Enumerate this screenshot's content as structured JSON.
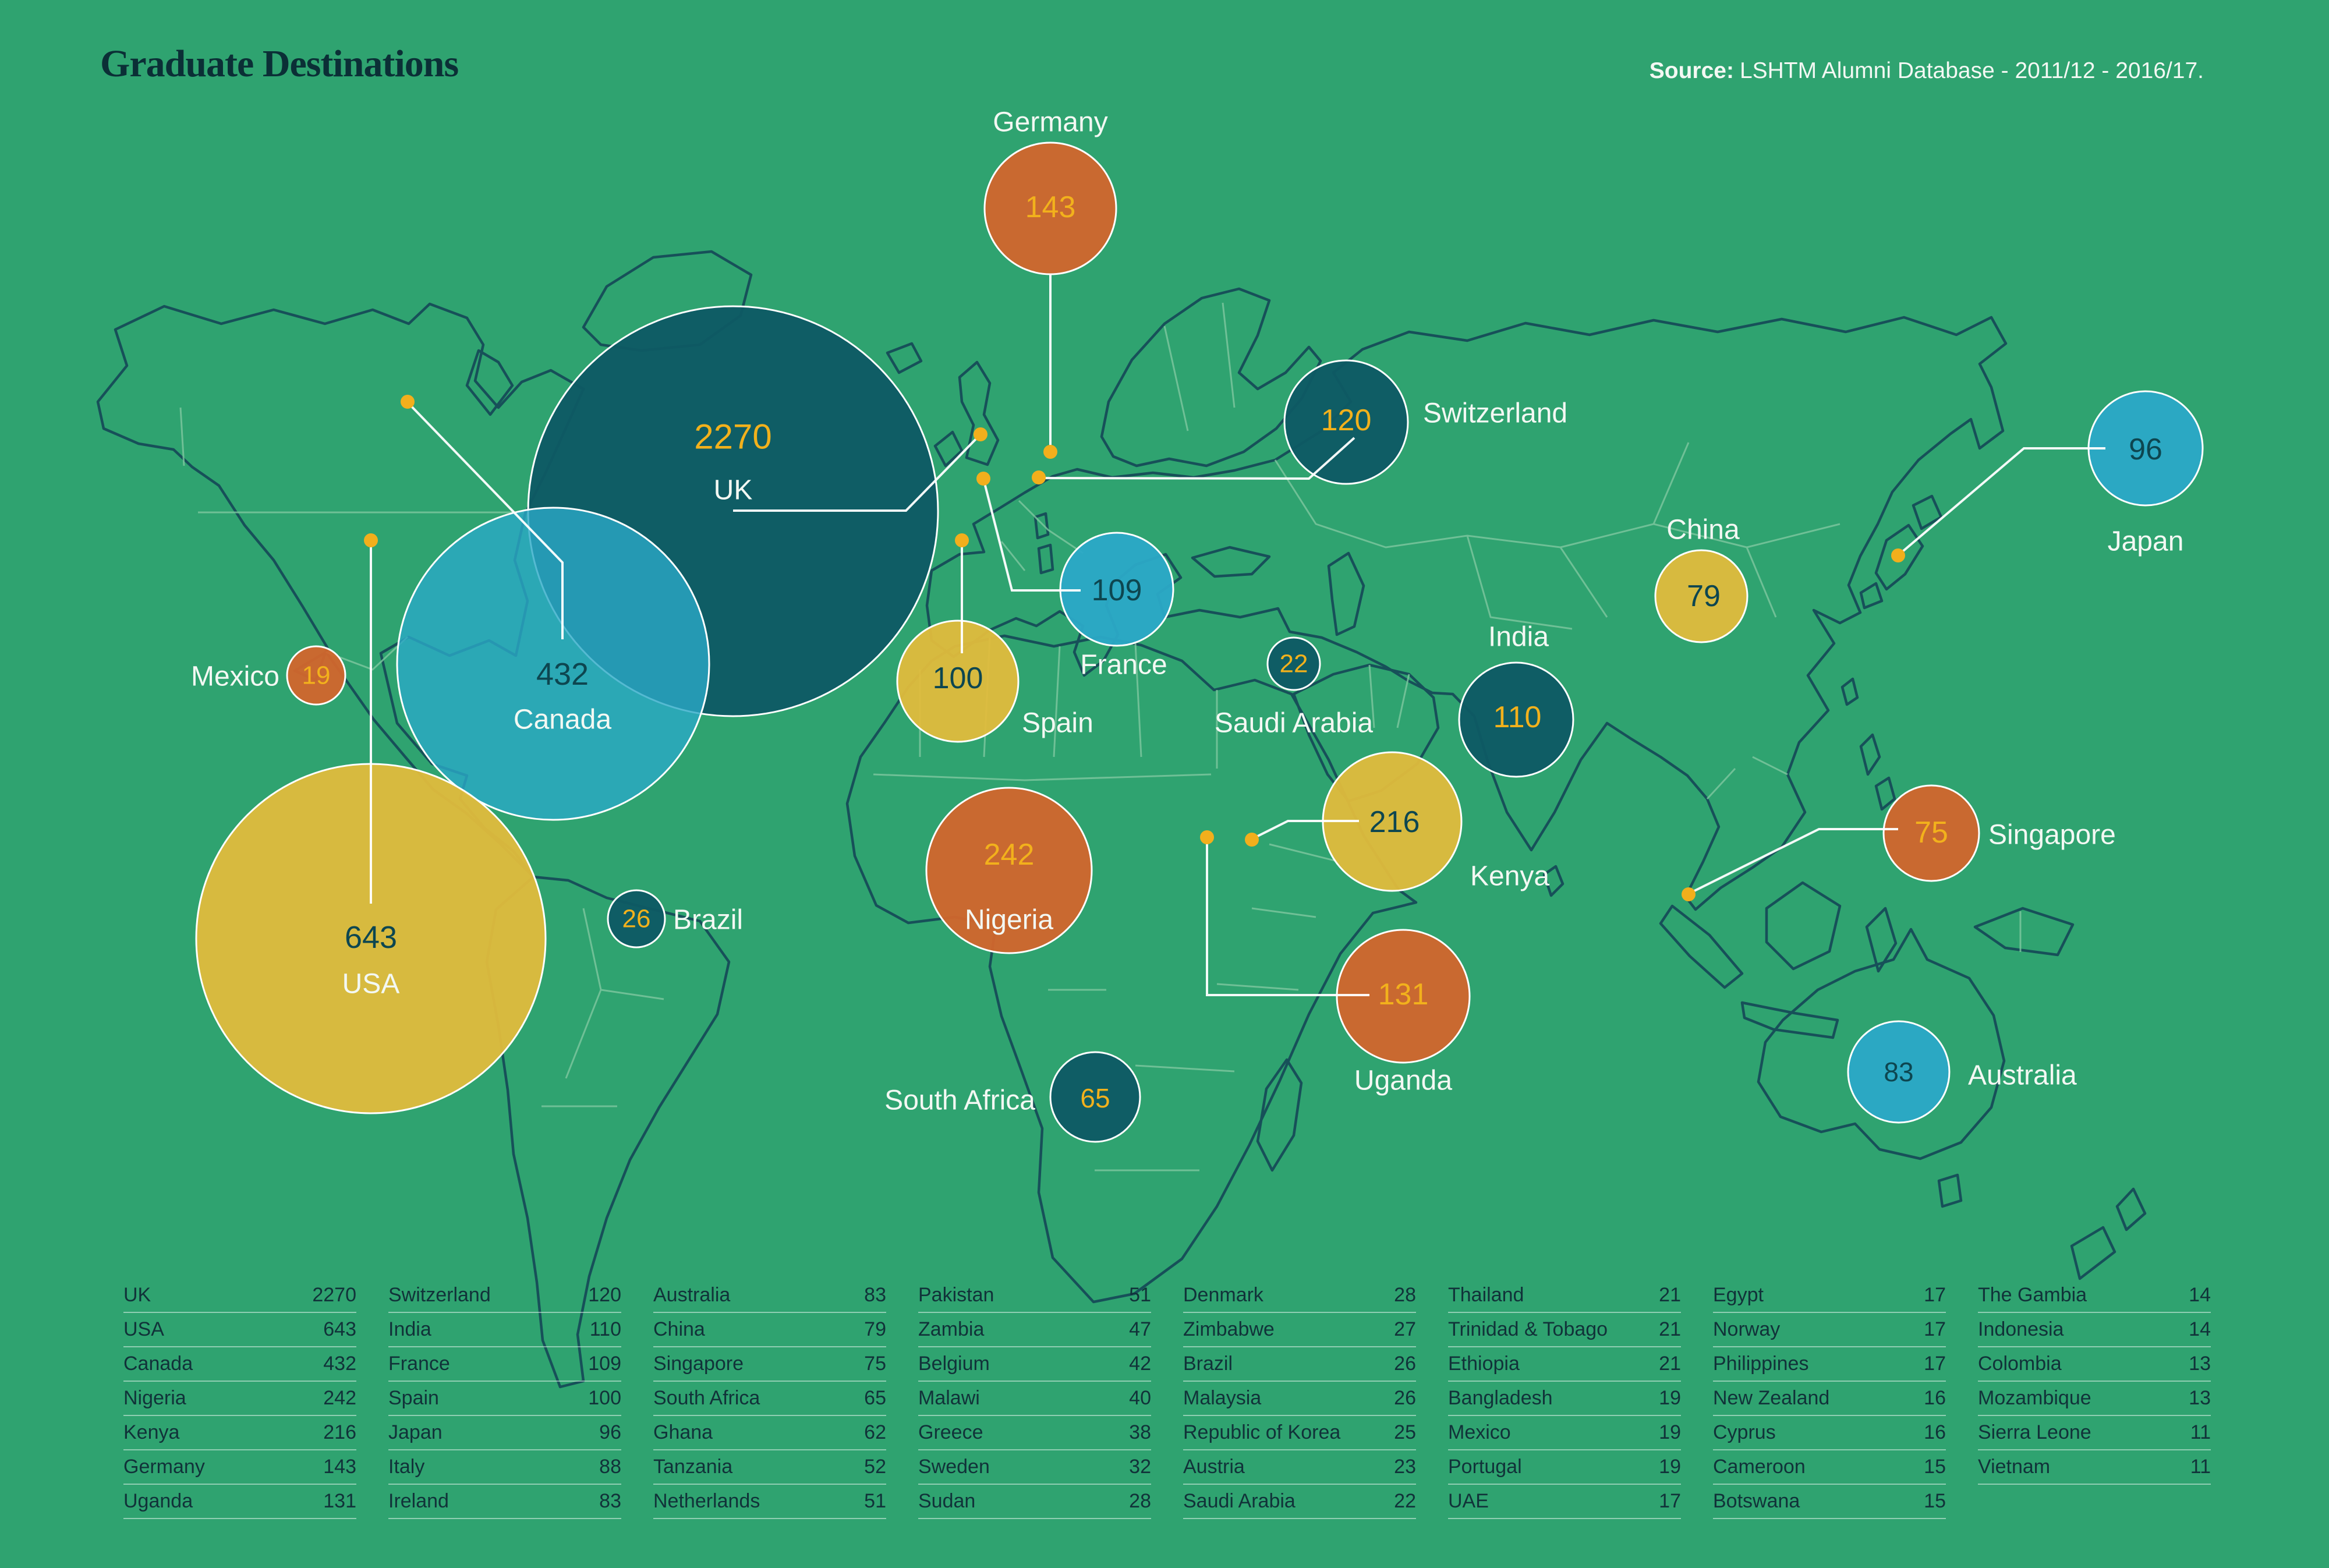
{
  "title": "Graduate Destinations",
  "source": {
    "label": "Source:",
    "text": "LSHTM Alumni Database - 2011/12 - 2016/17."
  },
  "colors": {
    "background": "#2FA370",
    "bubble_dark_teal": "#0E5A64",
    "bubble_yellow": "#E0BC3C",
    "bubble_orange": "#D2662C",
    "bubble_cyan": "#2BA9C7",
    "number_yellow": "#F2B11C",
    "number_dark": "#0D4650",
    "label_white": "#F3F8F3",
    "coastline": "#175059",
    "inner_border": "#7FC7A0",
    "title_text": "#0B2F36"
  },
  "bubbles": {
    "uk": {
      "label": "UK",
      "value": "2270"
    },
    "usa": {
      "label": "USA",
      "value": "643"
    },
    "canada": {
      "label": "Canada",
      "value": "432"
    },
    "nigeria": {
      "label": "Nigeria",
      "value": "242"
    },
    "kenya": {
      "label": "Kenya",
      "value": "216"
    },
    "germany": {
      "label": "Germany",
      "value": "143"
    },
    "uganda": {
      "label": "Uganda",
      "value": "131"
    },
    "switzerland": {
      "label": "Switzerland",
      "value": "120"
    },
    "india": {
      "label": "India",
      "value": "110"
    },
    "france": {
      "label": "France",
      "value": "109"
    },
    "spain": {
      "label": "Spain",
      "value": "100"
    },
    "japan": {
      "label": "Japan",
      "value": "96"
    },
    "australia": {
      "label": "Australia",
      "value": "83"
    },
    "china": {
      "label": "China",
      "value": "79"
    },
    "singapore": {
      "label": "Singapore",
      "value": "75"
    },
    "south_africa": {
      "label": "South Africa",
      "value": "65"
    },
    "brazil": {
      "label": "Brazil",
      "value": "26"
    },
    "saudi_arabia": {
      "label": "Saudi Arabia",
      "value": "22"
    },
    "mexico": {
      "label": "Mexico",
      "value": "19"
    }
  },
  "table": {
    "columns": [
      [
        {
          "country": "UK",
          "value": "2270"
        },
        {
          "country": "USA",
          "value": "643"
        },
        {
          "country": "Canada",
          "value": "432"
        },
        {
          "country": "Nigeria",
          "value": "242"
        },
        {
          "country": "Kenya",
          "value": "216"
        },
        {
          "country": "Germany",
          "value": "143"
        },
        {
          "country": "Uganda",
          "value": "131"
        }
      ],
      [
        {
          "country": "Switzerland",
          "value": "120"
        },
        {
          "country": "India",
          "value": "110"
        },
        {
          "country": "France",
          "value": "109"
        },
        {
          "country": "Spain",
          "value": "100"
        },
        {
          "country": "Japan",
          "value": "96"
        },
        {
          "country": "Italy",
          "value": "88"
        },
        {
          "country": "Ireland",
          "value": "83"
        }
      ],
      [
        {
          "country": "Australia",
          "value": "83"
        },
        {
          "country": "China",
          "value": "79"
        },
        {
          "country": "Singapore",
          "value": "75"
        },
        {
          "country": "South Africa",
          "value": "65"
        },
        {
          "country": "Ghana",
          "value": "62"
        },
        {
          "country": "Tanzania",
          "value": "52"
        },
        {
          "country": "Netherlands",
          "value": "51"
        }
      ],
      [
        {
          "country": "Pakistan",
          "value": "51"
        },
        {
          "country": "Zambia",
          "value": "47"
        },
        {
          "country": "Belgium",
          "value": "42"
        },
        {
          "country": "Malawi",
          "value": "40"
        },
        {
          "country": "Greece",
          "value": "38"
        },
        {
          "country": "Sweden",
          "value": "32"
        },
        {
          "country": "Sudan",
          "value": "28"
        }
      ],
      [
        {
          "country": "Denmark",
          "value": "28"
        },
        {
          "country": "Zimbabwe",
          "value": "27"
        },
        {
          "country": "Brazil",
          "value": "26"
        },
        {
          "country": "Malaysia",
          "value": "26"
        },
        {
          "country": "Republic of Korea",
          "value": "25"
        },
        {
          "country": "Austria",
          "value": "23"
        },
        {
          "country": "Saudi Arabia",
          "value": "22"
        }
      ],
      [
        {
          "country": "Thailand",
          "value": "21"
        },
        {
          "country": "Trinidad & Tobago",
          "value": "21"
        },
        {
          "country": "Ethiopia",
          "value": "21"
        },
        {
          "country": "Bangladesh",
          "value": "19"
        },
        {
          "country": "Mexico",
          "value": "19"
        },
        {
          "country": "Portugal",
          "value": "19"
        },
        {
          "country": "UAE",
          "value": "17"
        }
      ],
      [
        {
          "country": "Egypt",
          "value": "17"
        },
        {
          "country": "Norway",
          "value": "17"
        },
        {
          "country": "Philippines",
          "value": "17"
        },
        {
          "country": "New Zealand",
          "value": "16"
        },
        {
          "country": "Cyprus",
          "value": "16"
        },
        {
          "country": "Cameroon",
          "value": "15"
        },
        {
          "country": "Botswana",
          "value": "15"
        }
      ],
      [
        {
          "country": "The Gambia",
          "value": "14"
        },
        {
          "country": "Indonesia",
          "value": "14"
        },
        {
          "country": "Colombia",
          "value": "13"
        },
        {
          "country": "Mozambique",
          "value": "13"
        },
        {
          "country": "Sierra Leone",
          "value": "11"
        },
        {
          "country": "Vietnam",
          "value": "11"
        }
      ]
    ]
  },
  "chart_data": {
    "type": "bubble_map",
    "title": "Graduate Destinations",
    "unit": "graduates",
    "points": [
      {
        "country": "UK",
        "value": 2270
      },
      {
        "country": "USA",
        "value": 643
      },
      {
        "country": "Canada",
        "value": 432
      },
      {
        "country": "Nigeria",
        "value": 242
      },
      {
        "country": "Kenya",
        "value": 216
      },
      {
        "country": "Germany",
        "value": 143
      },
      {
        "country": "Uganda",
        "value": 131
      },
      {
        "country": "Switzerland",
        "value": 120
      },
      {
        "country": "India",
        "value": 110
      },
      {
        "country": "France",
        "value": 109
      },
      {
        "country": "Spain",
        "value": 100
      },
      {
        "country": "Japan",
        "value": 96
      },
      {
        "country": "Italy",
        "value": 88
      },
      {
        "country": "Ireland",
        "value": 83
      },
      {
        "country": "Australia",
        "value": 83
      },
      {
        "country": "China",
        "value": 79
      },
      {
        "country": "Singapore",
        "value": 75
      },
      {
        "country": "South Africa",
        "value": 65
      },
      {
        "country": "Ghana",
        "value": 62
      },
      {
        "country": "Tanzania",
        "value": 52
      },
      {
        "country": "Netherlands",
        "value": 51
      },
      {
        "country": "Pakistan",
        "value": 51
      },
      {
        "country": "Zambia",
        "value": 47
      },
      {
        "country": "Belgium",
        "value": 42
      },
      {
        "country": "Malawi",
        "value": 40
      },
      {
        "country": "Greece",
        "value": 38
      },
      {
        "country": "Sweden",
        "value": 32
      },
      {
        "country": "Sudan",
        "value": 28
      },
      {
        "country": "Denmark",
        "value": 28
      },
      {
        "country": "Zimbabwe",
        "value": 27
      },
      {
        "country": "Brazil",
        "value": 26
      },
      {
        "country": "Malaysia",
        "value": 26
      },
      {
        "country": "Republic of Korea",
        "value": 25
      },
      {
        "country": "Austria",
        "value": 23
      },
      {
        "country": "Saudi Arabia",
        "value": 22
      },
      {
        "country": "Thailand",
        "value": 21
      },
      {
        "country": "Trinidad & Tobago",
        "value": 21
      },
      {
        "country": "Ethiopia",
        "value": 21
      },
      {
        "country": "Bangladesh",
        "value": 19
      },
      {
        "country": "Mexico",
        "value": 19
      },
      {
        "country": "Portugal",
        "value": 19
      },
      {
        "country": "UAE",
        "value": 17
      },
      {
        "country": "Egypt",
        "value": 17
      },
      {
        "country": "Norway",
        "value": 17
      },
      {
        "country": "Philippines",
        "value": 17
      },
      {
        "country": "New Zealand",
        "value": 16
      },
      {
        "country": "Cyprus",
        "value": 16
      },
      {
        "country": "Cameroon",
        "value": 15
      },
      {
        "country": "Botswana",
        "value": 15
      },
      {
        "country": "The Gambia",
        "value": 14
      },
      {
        "country": "Indonesia",
        "value": 14
      },
      {
        "country": "Colombia",
        "value": 13
      },
      {
        "country": "Mozambique",
        "value": 13
      },
      {
        "country": "Sierra Leone",
        "value": 11
      },
      {
        "country": "Vietnam",
        "value": 11
      }
    ]
  }
}
